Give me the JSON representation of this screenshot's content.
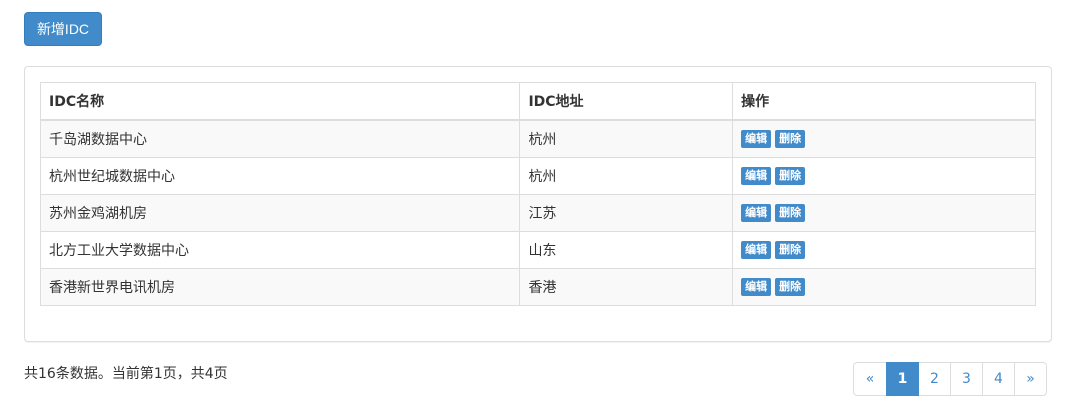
{
  "toolbar": {
    "add_label": "新增IDC"
  },
  "table": {
    "headers": {
      "name": "IDC名称",
      "address": "IDC地址",
      "actions": "操作"
    },
    "rows": [
      {
        "name": "千岛湖数据中心",
        "address": "杭州",
        "edit": "编辑",
        "delete": "删除"
      },
      {
        "name": "杭州世纪城数据中心",
        "address": "杭州",
        "edit": "编辑",
        "delete": "删除"
      },
      {
        "name": "苏州金鸡湖机房",
        "address": "江苏",
        "edit": "编辑",
        "delete": "删除"
      },
      {
        "name": "北方工业大学数据中心",
        "address": "山东",
        "edit": "编辑",
        "delete": "删除"
      },
      {
        "name": "香港新世界电讯机房",
        "address": "香港",
        "edit": "编辑",
        "delete": "删除"
      }
    ]
  },
  "summary": "共16条数据。当前第1页，共4页",
  "pagination": {
    "prev": "«",
    "pages": [
      "1",
      "2",
      "3",
      "4"
    ],
    "current": "1",
    "next": "»"
  },
  "colors": {
    "primary": "#428bca",
    "border": "#dddddd",
    "stripe": "#f9f9f9",
    "text": "#333333"
  }
}
